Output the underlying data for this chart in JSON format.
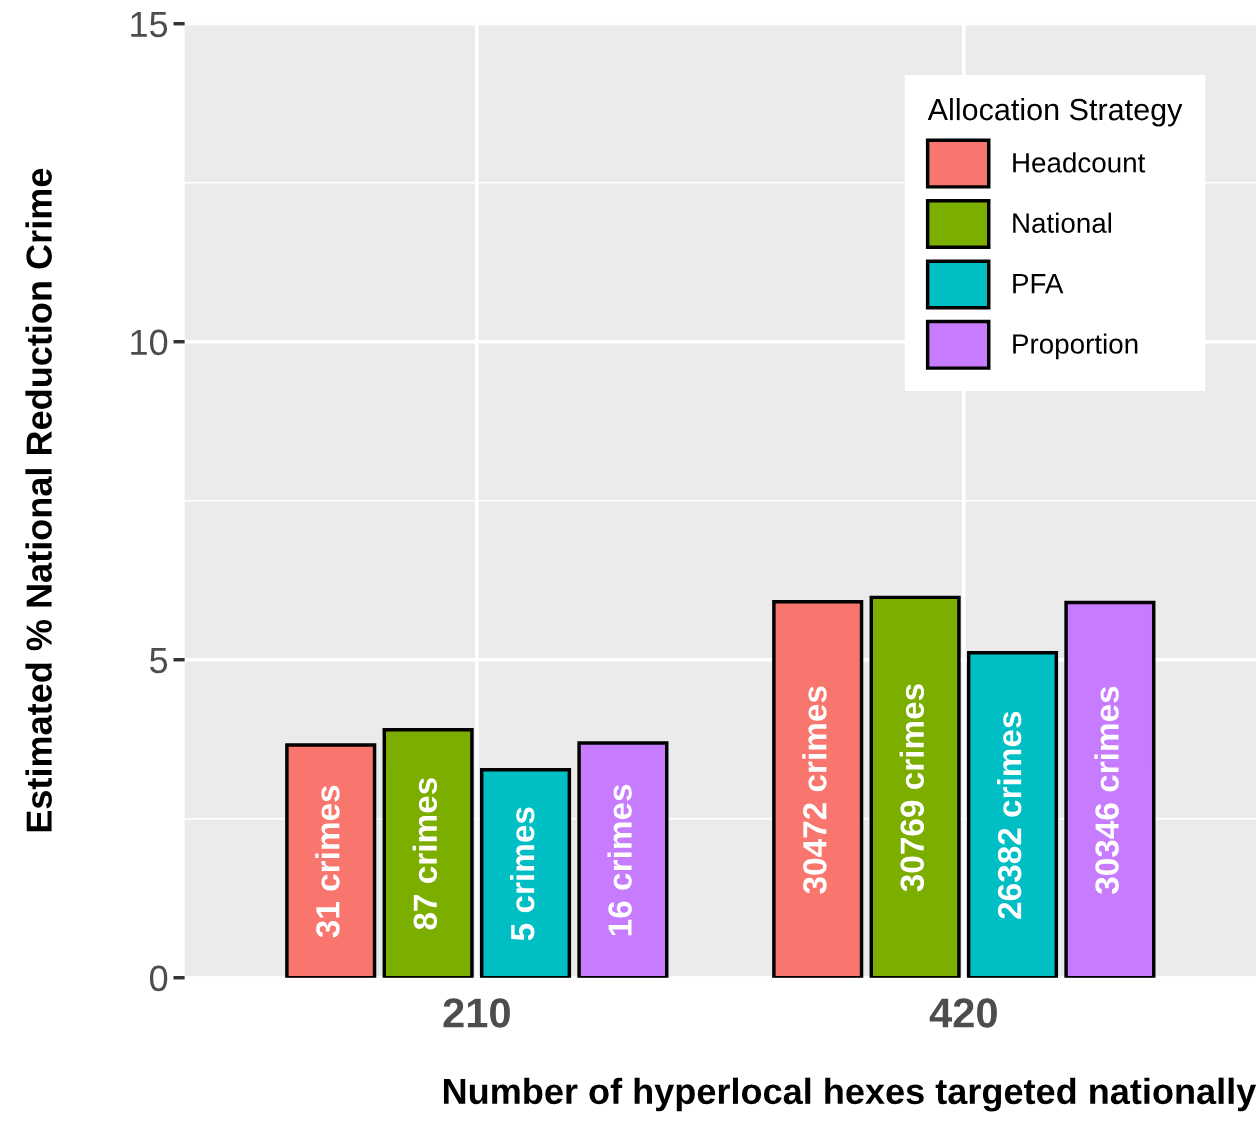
{
  "chart_data": {
    "type": "bar",
    "xlabel": "Number of hyperlocal hexes targeted nationally",
    "ylabel": "Estimated % National Reduction Crime",
    "legend_title": "Allocation Strategy",
    "categories": [
      "210",
      "420"
    ],
    "series": [
      {
        "name": "Headcount",
        "color": "#f8766d",
        "values": [
          3.66,
          5.91
        ]
      },
      {
        "name": "National",
        "color": "#7cae00",
        "values": [
          3.9,
          5.98
        ]
      },
      {
        "name": "PFA",
        "color": "#00bfc4",
        "values": [
          3.27,
          5.11
        ]
      },
      {
        "name": "Proportion",
        "color": "#c77cff",
        "values": [
          3.69,
          5.9
        ]
      }
    ],
    "annotations": [
      "31 crimes",
      "30472 crimes",
      "87 crimes",
      "30769 crimes",
      "5 crimes",
      "26382 crimes",
      "16 crimes",
      "30346 crimes"
    ],
    "ylim": [
      0,
      15
    ],
    "yticks": [
      0,
      5,
      10,
      15
    ],
    "grid": true,
    "legend": "top right"
  }
}
